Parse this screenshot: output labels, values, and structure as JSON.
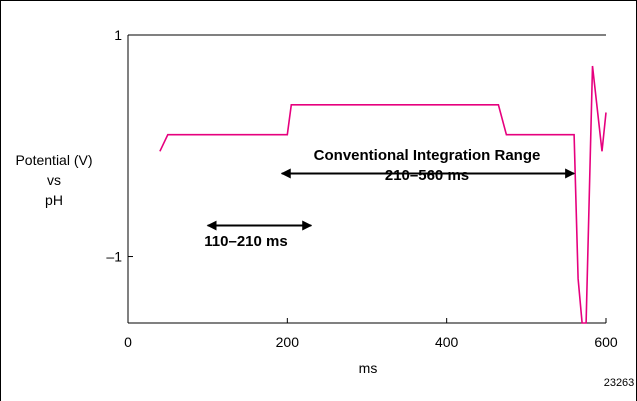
{
  "chart_data": {
    "type": "line",
    "xlabel": "ms",
    "ylabel_lines": [
      "Potential (V)",
      "vs",
      "pH"
    ],
    "xlim": [
      0,
      600
    ],
    "ylim": [
      -1.6,
      1
    ],
    "x_ticks": [
      0,
      200,
      400,
      600
    ],
    "y_ticks": [
      1,
      -1
    ],
    "y_tick_labels": [
      "1",
      "–1"
    ],
    "grid": false,
    "series_color": "#e6007e",
    "series": [
      {
        "x": [
          40,
          50,
          200,
          205,
          465,
          475,
          560,
          565,
          570,
          575,
          583,
          595,
          600
        ],
        "y": [
          -0.05,
          0.1,
          0.1,
          0.37,
          0.37,
          0.1,
          0.1,
          -1.2,
          -1.6,
          -1.6,
          0.72,
          -0.05,
          0.3
        ]
      }
    ],
    "annotations": [
      {
        "type": "double-arrow",
        "x1": 193,
        "x2": 560,
        "y": -0.25
      },
      {
        "type": "double-arrow",
        "x1": 100,
        "x2": 230,
        "y": -0.72
      }
    ],
    "annotation_texts": {
      "conventional_line1": "Conventional Integration Range",
      "conventional_line2": "210–560 ms",
      "short_range": "110–210 ms"
    },
    "figure_id": "23263"
  }
}
